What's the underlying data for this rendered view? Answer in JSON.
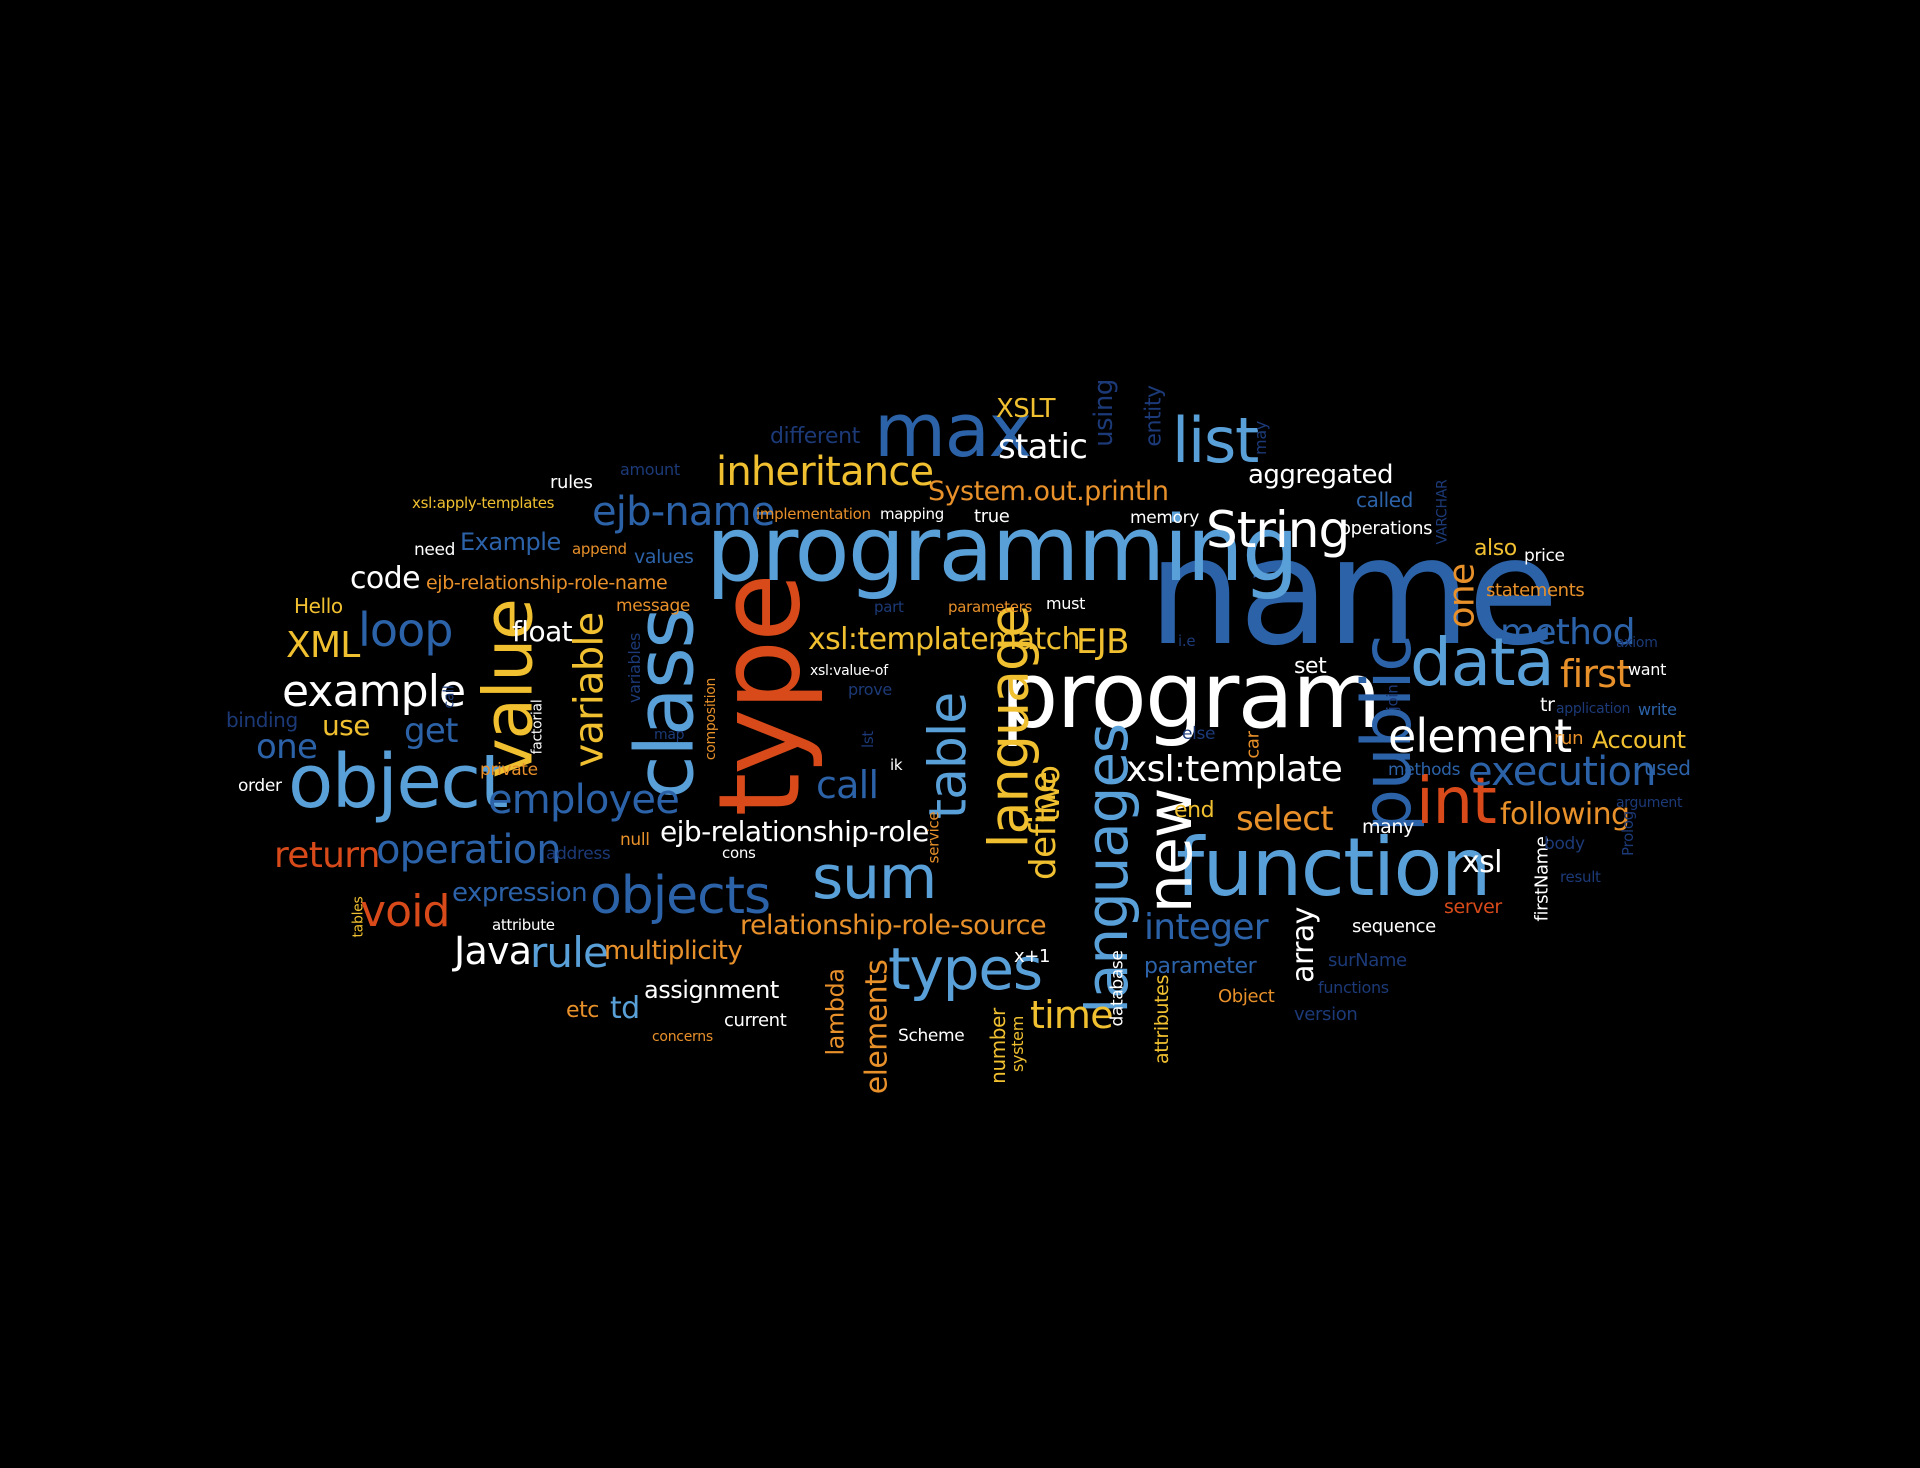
{
  "palette": {
    "background": "#000000",
    "white": "#ffffff",
    "light_blue": "#5aa0d8",
    "blue": "#2c62a8",
    "navy": "#1c3a78",
    "orange": "#e8902a",
    "red_orange": "#d84a1a",
    "yellow": "#f0c030"
  },
  "words": [
    {
      "text": "name",
      "color": "blue"
    },
    {
      "text": "programming",
      "color": "light_blue"
    },
    {
      "text": "type",
      "color": "red_orange"
    },
    {
      "text": "program",
      "color": "white"
    },
    {
      "text": "class",
      "color": "light_blue"
    },
    {
      "text": "object",
      "color": "light_blue"
    },
    {
      "text": "value",
      "color": "yellow"
    },
    {
      "text": "function",
      "color": "light_blue"
    },
    {
      "text": "data",
      "color": "light_blue"
    },
    {
      "text": "max",
      "color": "blue"
    },
    {
      "text": "list",
      "color": "light_blue"
    },
    {
      "text": "public",
      "color": "blue"
    },
    {
      "text": "int",
      "color": "red_orange"
    },
    {
      "text": "new",
      "color": "white"
    },
    {
      "text": "languages",
      "color": "light_blue"
    },
    {
      "text": "language",
      "color": "yellow"
    },
    {
      "text": "table",
      "color": "light_blue"
    },
    {
      "text": "sum",
      "color": "light_blue"
    },
    {
      "text": "types",
      "color": "light_blue"
    },
    {
      "text": "objects",
      "color": "blue"
    },
    {
      "text": "element",
      "color": "white"
    },
    {
      "text": "String",
      "color": "white"
    },
    {
      "text": "inheritance",
      "color": "yellow"
    },
    {
      "text": "ejb-name",
      "color": "blue"
    },
    {
      "text": "example",
      "color": "white"
    },
    {
      "text": "loop",
      "color": "blue"
    },
    {
      "text": "variable",
      "color": "yellow"
    },
    {
      "text": "employee",
      "color": "blue"
    },
    {
      "text": "operation",
      "color": "blue"
    },
    {
      "text": "execution",
      "color": "blue"
    },
    {
      "text": "xsl:template",
      "color": "white"
    },
    {
      "text": "xsl:templatematch",
      "color": "yellow"
    },
    {
      "text": "EJB",
      "color": "yellow"
    },
    {
      "text": "first",
      "color": "orange"
    },
    {
      "text": "one",
      "color": "orange"
    },
    {
      "text": "method",
      "color": "blue"
    },
    {
      "text": "call",
      "color": "blue"
    },
    {
      "text": "define",
      "color": "yellow"
    },
    {
      "text": "two",
      "color": "yellow"
    },
    {
      "text": "integer",
      "color": "blue"
    },
    {
      "text": "time",
      "color": "yellow"
    },
    {
      "text": "rule",
      "color": "light_blue"
    },
    {
      "text": "void",
      "color": "red_orange"
    },
    {
      "text": "return",
      "color": "red_orange"
    },
    {
      "text": "Java",
      "color": "white"
    },
    {
      "text": "static",
      "color": "white"
    },
    {
      "text": "System.out.println",
      "color": "orange"
    },
    {
      "text": "ejb-relationship-role",
      "color": "white"
    },
    {
      "text": "relationship-role-source",
      "color": "orange"
    },
    {
      "text": "select",
      "color": "orange"
    },
    {
      "text": "following",
      "color": "orange"
    },
    {
      "text": "code",
      "color": "white"
    },
    {
      "text": "XML",
      "color": "yellow"
    },
    {
      "text": "one",
      "color": "blue"
    },
    {
      "text": "get",
      "color": "blue"
    },
    {
      "text": "use",
      "color": "yellow"
    },
    {
      "text": "float",
      "color": "white"
    },
    {
      "text": "expression",
      "color": "blue"
    },
    {
      "text": "multiplicity",
      "color": "orange"
    },
    {
      "text": "aggregated",
      "color": "white"
    },
    {
      "text": "XSLT",
      "color": "yellow"
    },
    {
      "text": "different",
      "color": "navy"
    },
    {
      "text": "using",
      "color": "navy"
    },
    {
      "text": "entity",
      "color": "navy"
    },
    {
      "text": "Example",
      "color": "blue"
    },
    {
      "text": "ejb-relationship-role-name",
      "color": "orange"
    },
    {
      "text": "Hello",
      "color": "yellow"
    },
    {
      "text": "elements",
      "color": "orange"
    },
    {
      "text": "lambda",
      "color": "orange"
    },
    {
      "text": "array",
      "color": "white"
    },
    {
      "text": "xsl",
      "color": "white"
    },
    {
      "text": "Account",
      "color": "yellow"
    },
    {
      "text": "also",
      "color": "yellow"
    },
    {
      "text": "price",
      "color": "white"
    },
    {
      "text": "statements",
      "color": "orange"
    },
    {
      "text": "set",
      "color": "white"
    },
    {
      "text": "memory",
      "color": "white"
    },
    {
      "text": "true",
      "color": "white"
    },
    {
      "text": "mapping",
      "color": "white"
    },
    {
      "text": "implementation",
      "color": "orange"
    },
    {
      "text": "called",
      "color": "blue"
    },
    {
      "text": "operations",
      "color": "white"
    },
    {
      "text": "rules",
      "color": "white"
    },
    {
      "text": "amount",
      "color": "navy"
    },
    {
      "text": "xsl:apply-templates",
      "color": "yellow"
    },
    {
      "text": "need",
      "color": "white"
    },
    {
      "text": "append",
      "color": "orange"
    },
    {
      "text": "values",
      "color": "blue"
    },
    {
      "text": "message",
      "color": "orange"
    },
    {
      "text": "parameters",
      "color": "orange"
    },
    {
      "text": "must",
      "color": "white"
    },
    {
      "text": "part",
      "color": "navy"
    },
    {
      "text": "xsl:value-of",
      "color": "white"
    },
    {
      "text": "prove",
      "color": "navy"
    },
    {
      "text": "order",
      "color": "white"
    },
    {
      "text": "private",
      "color": "orange"
    },
    {
      "text": "factorial",
      "color": "white"
    },
    {
      "text": "binding",
      "color": "navy"
    },
    {
      "text": "null",
      "color": "orange"
    },
    {
      "text": "address",
      "color": "navy"
    },
    {
      "text": "cons",
      "color": "white"
    },
    {
      "text": "attribute",
      "color": "white"
    },
    {
      "text": "tables",
      "color": "yellow"
    },
    {
      "text": "etc",
      "color": "orange"
    },
    {
      "text": "td",
      "color": "light_blue"
    },
    {
      "text": "assignment",
      "color": "white"
    },
    {
      "text": "current",
      "color": "white"
    },
    {
      "text": "concerns",
      "color": "orange"
    },
    {
      "text": "Scheme",
      "color": "white"
    },
    {
      "text": "number",
      "color": "yellow"
    },
    {
      "text": "system",
      "color": "yellow"
    },
    {
      "text": "database",
      "color": "white"
    },
    {
      "text": "attributes",
      "color": "yellow"
    },
    {
      "text": "parameter",
      "color": "blue"
    },
    {
      "text": "x+1",
      "color": "white"
    },
    {
      "text": "Object",
      "color": "orange"
    },
    {
      "text": "version",
      "color": "navy"
    },
    {
      "text": "functions",
      "color": "navy"
    },
    {
      "text": "surName",
      "color": "navy"
    },
    {
      "text": "sequence",
      "color": "white"
    },
    {
      "text": "server",
      "color": "red_orange"
    },
    {
      "text": "firstName",
      "color": "white"
    },
    {
      "text": "result",
      "color": "navy"
    },
    {
      "text": "body",
      "color": "navy"
    },
    {
      "text": "Prolog",
      "color": "navy"
    },
    {
      "text": "argument",
      "color": "navy"
    },
    {
      "text": "used",
      "color": "blue"
    },
    {
      "text": "write",
      "color": "blue"
    },
    {
      "text": "want",
      "color": "white"
    },
    {
      "text": "axiom",
      "color": "navy"
    },
    {
      "text": "tr",
      "color": "white"
    },
    {
      "text": "application",
      "color": "navy"
    },
    {
      "text": "run",
      "color": "orange"
    },
    {
      "text": "methods",
      "color": "blue"
    },
    {
      "text": "many",
      "color": "white"
    },
    {
      "text": "end",
      "color": "yellow"
    },
    {
      "text": "service",
      "color": "orange"
    },
    {
      "text": "ik",
      "color": "white"
    },
    {
      "text": "lst",
      "color": "navy"
    },
    {
      "text": "join",
      "color": "navy"
    },
    {
      "text": "else",
      "color": "navy"
    },
    {
      "text": "car",
      "color": "orange"
    },
    {
      "text": "i.e",
      "color": "navy"
    },
    {
      "text": "may",
      "color": "navy"
    },
    {
      "text": "VARCHAR",
      "color": "navy"
    },
    {
      "text": "call",
      "color": "navy"
    },
    {
      "text": "map",
      "color": "navy"
    },
    {
      "text": "variables",
      "color": "navy"
    },
    {
      "text": "composition",
      "color": "orange"
    }
  ]
}
